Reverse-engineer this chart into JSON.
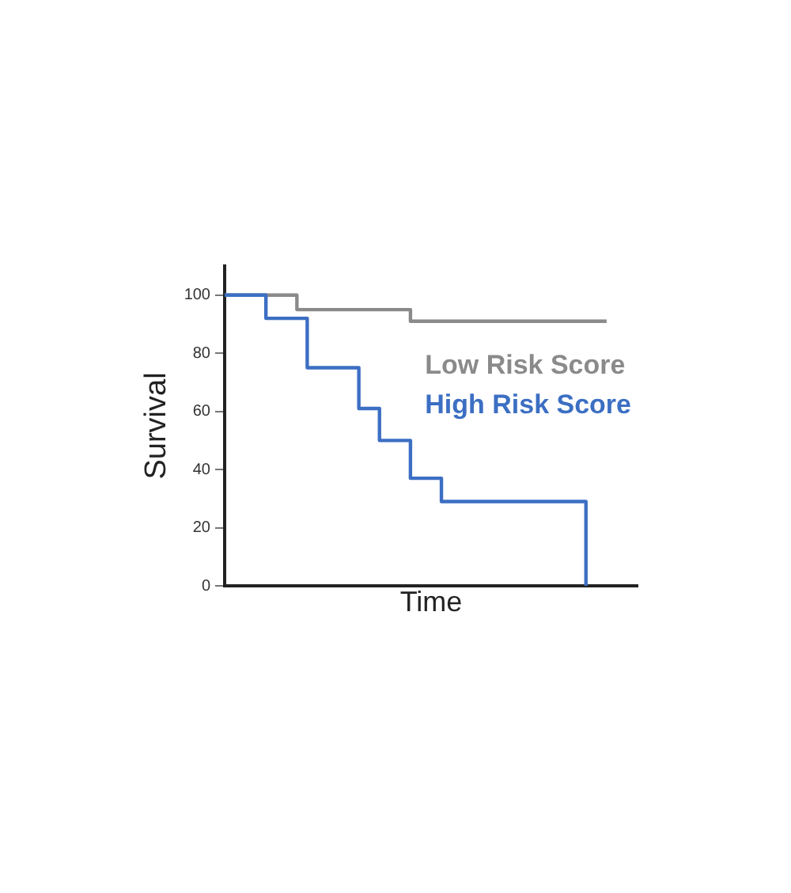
{
  "chart_data": {
    "type": "step",
    "xlabel": "Time",
    "ylabel": "Survival",
    "categories": [
      null,
      null,
      null,
      null,
      null,
      null,
      null,
      null,
      null,
      null,
      null,
      null,
      null,
      null,
      null,
      null,
      null,
      null,
      null,
      null,
      null,
      null,
      null,
      null,
      null,
      null,
      null,
      null,
      null,
      null,
      null,
      null,
      null,
      null,
      null,
      null,
      null,
      null,
      null,
      null,
      null
    ],
    "series": [
      {
        "name": "Low Risk Score",
        "color": "#8a8a8a",
        "values": [
          100,
          100,
          100,
          100,
          100,
          100,
          100,
          95,
          95,
          95,
          95,
          95,
          95,
          95,
          95,
          95,
          95,
          95,
          91,
          91,
          91,
          91,
          91,
          91,
          91,
          91,
          91,
          91,
          91,
          91,
          91,
          91,
          91,
          91,
          91,
          91,
          91,
          91,
          null,
          null,
          null
        ]
      },
      {
        "name": "High Risk Score",
        "color": "#3c6fc3",
        "values": [
          100,
          100,
          100,
          100,
          92,
          92,
          92,
          92,
          75,
          75,
          75,
          75,
          75,
          61,
          61,
          50,
          50,
          50,
          37,
          37,
          37,
          29,
          29,
          29,
          29,
          29,
          29,
          29,
          29,
          29,
          29,
          29,
          29,
          29,
          29,
          0,
          null,
          null,
          null,
          null,
          null
        ]
      }
    ],
    "ylim": [
      0,
      110
    ],
    "yticks": [
      0,
      20,
      40,
      60,
      80,
      100
    ],
    "tick_labels": "y",
    "legend": "top right",
    "marker": "none",
    "line_style": "solid"
  }
}
